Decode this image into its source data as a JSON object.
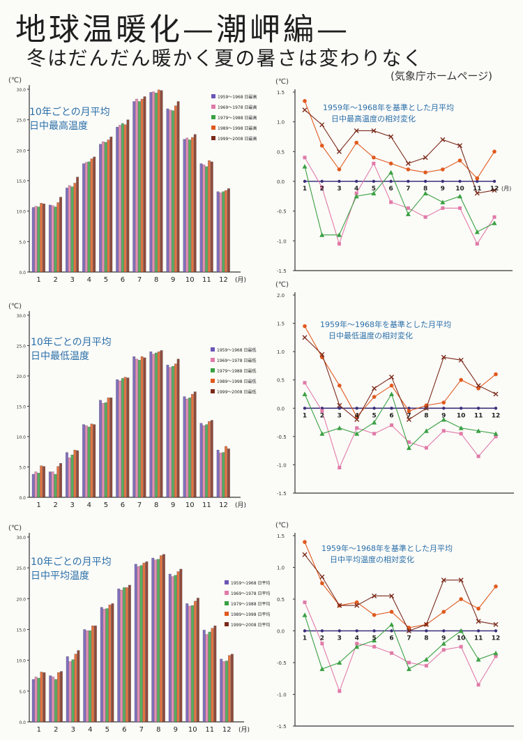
{
  "title": "地球温暖化—潮岬編—",
  "subtitle": "冬はだんだん暖かく夏の暑さは変わりなく",
  "source": "(気象庁ホームページ)",
  "colors": {
    "decade_1959": "#6b55b5",
    "decade_1969": "#e07aa8",
    "decade_1979": "#3aa043",
    "decade_1989": "#e05a1e",
    "decade_1999": "#7a2a1a",
    "annotation": "#2a6fa8",
    "baseline": "#3a2f7a"
  },
  "chart_data": [
    {
      "type": "bar",
      "title": "10年ごとの月平均 日中最高温度",
      "ylabel": "(℃)",
      "xlabel": "(月)",
      "ylim": [
        0,
        30
      ],
      "yticks": [
        "0.0",
        "5.0",
        "10.0",
        "15.0",
        "20.0",
        "25.0",
        "30.0"
      ],
      "categories": [
        "1",
        "2",
        "3",
        "4",
        "5",
        "6",
        "7",
        "8",
        "9",
        "10",
        "11",
        "12"
      ],
      "series": [
        {
          "name": "1959～1968 日最高",
          "values": [
            10.6,
            11.0,
            13.8,
            17.8,
            21.0,
            23.8,
            28.0,
            29.5,
            26.8,
            21.8,
            17.8,
            13.2
          ]
        },
        {
          "name": "1969～1978 日最高",
          "values": [
            10.8,
            10.9,
            14.2,
            18.0,
            21.4,
            24.1,
            28.4,
            29.6,
            26.6,
            22.0,
            17.6,
            13.0
          ]
        },
        {
          "name": "1979～1988 日最高",
          "values": [
            10.7,
            10.7,
            14.0,
            18.1,
            21.3,
            24.4,
            28.0,
            29.4,
            26.5,
            21.7,
            17.3,
            13.2
          ]
        },
        {
          "name": "1989～1998 日最高",
          "values": [
            11.3,
            11.4,
            14.6,
            18.6,
            21.7,
            24.2,
            28.4,
            29.9,
            27.3,
            22.1,
            18.3,
            13.4
          ]
        },
        {
          "name": "1999～2008 日最高",
          "values": [
            11.2,
            12.3,
            15.6,
            18.9,
            22.2,
            25.0,
            28.8,
            29.8,
            28.0,
            22.6,
            18.1,
            13.7
          ]
        }
      ]
    },
    {
      "type": "line",
      "title": "1959年～1968年を基準とした月平均 日中最高温度の相対変化",
      "ylabel": "(℃)",
      "xlabel": "(月)",
      "ylim": [
        -1.5,
        1.5
      ],
      "yticks": [
        "1.5",
        "1.0",
        "0.5",
        "0.0",
        "-0.5",
        "-1.0",
        "-1.5"
      ],
      "x": [
        1,
        2,
        3,
        4,
        5,
        6,
        7,
        8,
        9,
        10,
        11,
        12
      ],
      "series": [
        {
          "name": "1959～1968",
          "values": [
            0,
            0,
            0,
            0,
            0,
            0,
            0,
            0,
            0,
            0,
            0,
            0
          ]
        },
        {
          "name": "1969～1978",
          "values": [
            0.4,
            -0.1,
            -1.05,
            -0.2,
            0.3,
            -0.35,
            -0.45,
            -0.6,
            -0.45,
            -0.45,
            -1.05,
            -0.6
          ]
        },
        {
          "name": "1979～1988",
          "values": [
            0.25,
            -0.9,
            -0.9,
            -0.25,
            -0.2,
            0.15,
            -0.55,
            -0.2,
            -0.35,
            -0.25,
            -0.85,
            -0.7
          ]
        },
        {
          "name": "1989～1998",
          "values": [
            1.35,
            0.6,
            0.2,
            0.65,
            0.4,
            0.3,
            0.2,
            0.15,
            0.2,
            0.35,
            0.05,
            0.5
          ]
        },
        {
          "name": "1999～2008",
          "values": [
            1.2,
            0.95,
            0.5,
            0.85,
            0.85,
            0.75,
            0.3,
            0.4,
            0.7,
            0.6,
            -0.2,
            -0.15
          ]
        }
      ]
    },
    {
      "type": "bar",
      "title": "10年ごとの月平均 日中最低温度",
      "ylabel": "(℃)",
      "xlabel": "(月)",
      "ylim": [
        0,
        30
      ],
      "yticks": [
        "0.0",
        "5.0",
        "10.0",
        "15.0",
        "20.0",
        "25.0",
        "30.0"
      ],
      "categories": [
        "1",
        "2",
        "3",
        "4",
        "5",
        "6",
        "7",
        "8",
        "9",
        "10",
        "11",
        "12"
      ],
      "series": [
        {
          "name": "1959～1968 日最低",
          "values": [
            3.8,
            4.2,
            7.4,
            12.0,
            16.0,
            19.4,
            23.2,
            24.0,
            21.8,
            16.6,
            12.2,
            7.8
          ]
        },
        {
          "name": "1969～1978 日最低",
          "values": [
            4.2,
            4.2,
            6.5,
            11.8,
            15.5,
            19.2,
            22.8,
            23.6,
            21.4,
            16.2,
            11.8,
            7.3
          ]
        },
        {
          "name": "1979～1988 日最低",
          "values": [
            4.0,
            3.8,
            7.0,
            11.6,
            15.6,
            19.6,
            22.6,
            23.8,
            21.6,
            16.4,
            12.0,
            7.4
          ]
        },
        {
          "name": "1989～1998 日最低",
          "values": [
            5.2,
            5.1,
            7.8,
            12.1,
            16.4,
            19.8,
            23.2,
            24.0,
            22.0,
            17.0,
            12.5,
            8.4
          ]
        },
        {
          "name": "1999～2008 日最低",
          "values": [
            5.1,
            5.6,
            7.7,
            12.0,
            16.4,
            19.7,
            23.0,
            24.2,
            22.8,
            17.4,
            12.7,
            8.0
          ]
        }
      ]
    },
    {
      "type": "line",
      "title": "1959年～1968年を基準とした月平均 日中最低温度の相対変化",
      "ylabel": "(℃)",
      "xlabel": "",
      "ylim": [
        -1.5,
        2.0
      ],
      "yticks": [
        "2.0",
        "1.5",
        "1.0",
        "0.5",
        "0.0",
        "-0.5",
        "-1.0",
        "-1.5"
      ],
      "x": [
        1,
        2,
        3,
        4,
        5,
        6,
        7,
        8,
        9,
        10,
        11,
        12
      ],
      "series": [
        {
          "name": "1959～1968",
          "values": [
            0,
            0,
            0,
            0,
            0,
            0,
            0,
            0,
            0,
            0,
            0,
            0
          ]
        },
        {
          "name": "1969～1978",
          "values": [
            0.45,
            -0.05,
            -1.05,
            -0.35,
            -0.45,
            -0.3,
            -0.6,
            -0.7,
            -0.4,
            -0.45,
            -0.85,
            -0.5
          ]
        },
        {
          "name": "1979～1988",
          "values": [
            0.25,
            -0.45,
            -0.35,
            -0.45,
            -0.25,
            0.25,
            -0.7,
            -0.4,
            -0.2,
            -0.35,
            -0.4,
            -0.45
          ]
        },
        {
          "name": "1989～1998",
          "values": [
            1.45,
            0.9,
            0.4,
            -0.15,
            0.2,
            0.4,
            -0.05,
            0.05,
            0.1,
            0.5,
            0.35,
            0.6
          ]
        },
        {
          "name": "1999～2008",
          "values": [
            1.25,
            0.95,
            0.05,
            -0.2,
            0.35,
            0.55,
            -0.2,
            0.0,
            0.9,
            0.85,
            0.4,
            0.25
          ]
        }
      ]
    },
    {
      "type": "bar",
      "title": "10年ごとの月平均 日中平均温度",
      "ylabel": "(℃)",
      "xlabel": "(月)",
      "ylim": [
        0,
        30
      ],
      "yticks": [
        "0.0",
        "5.0",
        "10.0",
        "15.0",
        "20.0",
        "25.0",
        "30.0"
      ],
      "categories": [
        "1",
        "2",
        "3",
        "4",
        "5",
        "6",
        "7",
        "8",
        "9",
        "10",
        "11",
        "12"
      ],
      "series": [
        {
          "name": "1959～1968 日平均",
          "values": [
            6.9,
            7.5,
            10.6,
            15.0,
            18.6,
            21.6,
            25.6,
            26.6,
            24.0,
            19.2,
            14.9,
            10.2
          ]
        },
        {
          "name": "1969～1978 日平均",
          "values": [
            7.3,
            7.3,
            9.8,
            14.8,
            18.3,
            21.4,
            25.2,
            26.3,
            23.6,
            18.8,
            14.2,
            9.8
          ]
        },
        {
          "name": "1979～1988 日平均",
          "values": [
            7.1,
            6.9,
            10.1,
            14.8,
            18.4,
            21.8,
            25.4,
            26.4,
            23.8,
            18.9,
            14.6,
            9.9
          ]
        },
        {
          "name": "1989～1998 日平均",
          "values": [
            8.1,
            8.0,
            11.0,
            15.6,
            19.0,
            21.8,
            25.8,
            27.0,
            24.4,
            19.6,
            15.2,
            10.8
          ]
        },
        {
          "name": "1999～2008 日平均",
          "values": [
            8.0,
            8.2,
            11.6,
            15.6,
            19.2,
            22.2,
            26.0,
            27.2,
            24.8,
            20.1,
            15.6,
            11.0
          ]
        }
      ]
    },
    {
      "type": "line",
      "title": "1959年～1968年を基準とした月平均 日中平均温度の相対変化",
      "ylabel": "(℃)",
      "xlabel": "",
      "ylim": [
        -1.5,
        1.5
      ],
      "yticks": [
        "1.5",
        "1.0",
        "0.5",
        "0.0",
        "-0.5",
        "-1.0",
        "-1.5"
      ],
      "x": [
        1,
        2,
        3,
        4,
        5,
        6,
        7,
        8,
        9,
        10,
        11,
        12
      ],
      "series": [
        {
          "name": "1959～1968",
          "values": [
            0,
            0,
            0,
            0,
            0,
            0,
            0,
            0,
            0,
            0,
            0,
            0
          ]
        },
        {
          "name": "1969～1978",
          "values": [
            0.45,
            -0.2,
            -0.95,
            -0.2,
            -0.25,
            -0.35,
            -0.5,
            -0.55,
            -0.3,
            -0.25,
            -0.85,
            -0.4
          ]
        },
        {
          "name": "1979～1988",
          "values": [
            0.25,
            -0.6,
            -0.5,
            -0.25,
            -0.15,
            0.1,
            -0.6,
            -0.45,
            -0.2,
            0.0,
            -0.45,
            -0.35
          ]
        },
        {
          "name": "1989～1998",
          "values": [
            1.4,
            0.75,
            0.4,
            0.45,
            0.25,
            0.3,
            0.05,
            0.1,
            0.3,
            0.5,
            0.35,
            0.7
          ]
        },
        {
          "name": "1999～2008",
          "values": [
            1.2,
            0.85,
            0.4,
            0.4,
            0.55,
            0.55,
            0.0,
            0.1,
            0.8,
            0.8,
            0.15,
            0.1
          ]
        }
      ]
    }
  ]
}
